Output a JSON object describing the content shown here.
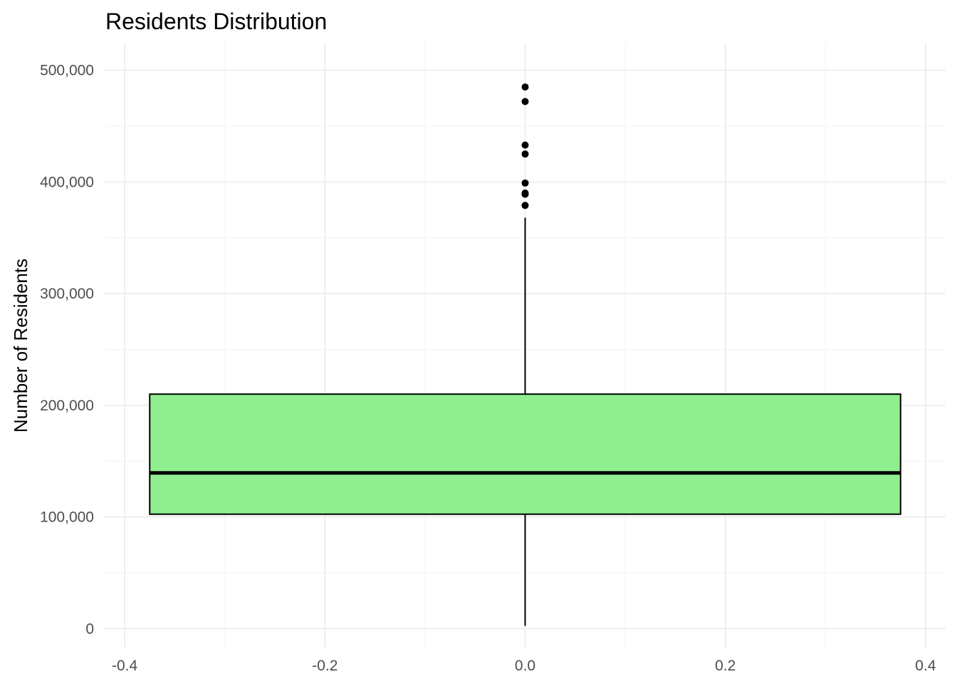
{
  "chart_data": {
    "type": "boxplot",
    "title": "Residents Distribution",
    "xlabel": "",
    "ylabel": "Number of Residents",
    "xlim": [
      -0.42,
      0.42
    ],
    "ylim": [
      -17000,
      524000
    ],
    "x_ticks": [
      -0.4,
      -0.2,
      0.0,
      0.2,
      0.4
    ],
    "x_tick_labels": [
      "-0.4",
      "-0.2",
      "0.0",
      "0.2",
      "0.4"
    ],
    "y_ticks": [
      0,
      100000,
      200000,
      300000,
      400000,
      500000
    ],
    "y_tick_labels": [
      "0",
      "100,000",
      "200,000",
      "300,000",
      "400,000",
      "500,000"
    ],
    "grid": true,
    "box": {
      "x": 0.0,
      "x_min": -0.375,
      "x_max": 0.375,
      "whisker_low": 2500,
      "q1": 102500,
      "median": 139500,
      "q3": 210000,
      "whisker_high": 368000,
      "outliers": [
        379000,
        389000,
        390000,
        399000,
        425000,
        433000,
        472000,
        485000
      ],
      "fill_color": "#90ee90",
      "line_color": "#000000"
    }
  }
}
